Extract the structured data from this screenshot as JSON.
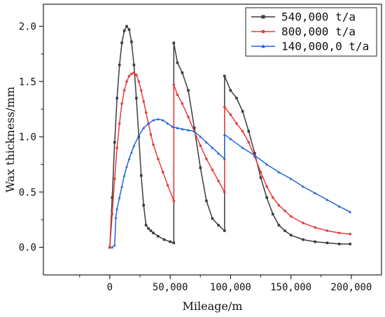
{
  "chart_data": {
    "type": "line",
    "xlabel": "Mileage/m",
    "ylabel": "Wax thickness/mm",
    "xlim": [
      -55000,
      225000
    ],
    "ylim": [
      -0.25,
      2.2
    ],
    "x_ticks": [
      0,
      50000,
      100000,
      150000,
      200000
    ],
    "x_tick_labels": [
      "0",
      "50,000",
      "100,000",
      "150,000",
      "200,000"
    ],
    "y_ticks": [
      0.0,
      0.5,
      1.0,
      1.5,
      2.0
    ],
    "y_tick_labels": [
      "0.0",
      "0.5",
      "1.0",
      "1.5",
      "2.0"
    ],
    "grid": false,
    "legend_position": "top-right",
    "series": [
      {
        "name": "540,000 t/a",
        "color": "#3c3c3c",
        "marker": "square",
        "x": [
          0,
          2000,
          4000,
          6000,
          8000,
          10000,
          12000,
          14000,
          16000,
          18000,
          20000,
          22000,
          24000,
          26000,
          28000,
          30000,
          32000,
          34000,
          36000,
          40000,
          45000,
          50000,
          53000,
          53001,
          56000,
          60000,
          65000,
          70000,
          75000,
          80000,
          85000,
          90000,
          95000,
          95001,
          100000,
          105000,
          110000,
          115000,
          120000,
          125000,
          130000,
          135000,
          140000,
          145000,
          150000,
          160000,
          170000,
          180000,
          190000,
          199000
        ],
        "y": [
          0.0,
          0.45,
          0.95,
          1.35,
          1.65,
          1.85,
          1.96,
          2.0,
          1.97,
          1.86,
          1.65,
          1.35,
          1.0,
          0.65,
          0.38,
          0.2,
          0.17,
          0.15,
          0.13,
          0.1,
          0.07,
          0.05,
          0.04,
          1.85,
          1.67,
          1.58,
          1.42,
          1.08,
          0.72,
          0.42,
          0.26,
          0.2,
          0.15,
          1.55,
          1.42,
          1.35,
          1.23,
          1.05,
          0.85,
          0.63,
          0.45,
          0.3,
          0.2,
          0.15,
          0.11,
          0.07,
          0.05,
          0.04,
          0.03,
          0.03
        ]
      },
      {
        "name": "800,000 t/a",
        "color": "#e83b3b",
        "marker": "circle",
        "x": [
          0,
          2000,
          4000,
          6000,
          8000,
          10000,
          12000,
          14000,
          16000,
          18000,
          20000,
          22000,
          24000,
          26000,
          28000,
          30000,
          32000,
          34000,
          36000,
          40000,
          44000,
          48000,
          53000,
          53001,
          56000,
          60000,
          65000,
          70000,
          75000,
          80000,
          85000,
          90000,
          95000,
          95001,
          100000,
          105000,
          110000,
          115000,
          120000,
          125000,
          130000,
          135000,
          140000,
          145000,
          150000,
          160000,
          170000,
          180000,
          190000,
          199000
        ],
        "y": [
          0.0,
          0.3,
          0.62,
          0.9,
          1.12,
          1.3,
          1.42,
          1.5,
          1.55,
          1.57,
          1.58,
          1.56,
          1.5,
          1.42,
          1.32,
          1.22,
          1.12,
          1.02,
          0.93,
          0.8,
          0.68,
          0.56,
          0.42,
          1.47,
          1.38,
          1.3,
          1.18,
          1.05,
          0.92,
          0.8,
          0.7,
          0.6,
          0.5,
          1.27,
          1.2,
          1.12,
          1.05,
          0.95,
          0.82,
          0.68,
          0.55,
          0.45,
          0.38,
          0.33,
          0.28,
          0.22,
          0.18,
          0.15,
          0.13,
          0.12
        ]
      },
      {
        "name": "140,000,0 t/a",
        "color": "#2466d9",
        "marker": "triangle",
        "x": [
          2000,
          4000,
          5000,
          6000,
          8000,
          10000,
          12000,
          14000,
          16000,
          18000,
          20000,
          24000,
          28000,
          32000,
          36000,
          40000,
          44000,
          48000,
          52000,
          56000,
          60000,
          65000,
          70000,
          75000,
          80000,
          85000,
          90000,
          95000,
          95001,
          100000,
          110000,
          120000,
          130000,
          140000,
          150000,
          160000,
          170000,
          180000,
          190000,
          199000
        ],
        "y": [
          0.0,
          0.02,
          0.27,
          0.35,
          0.45,
          0.55,
          0.65,
          0.73,
          0.8,
          0.86,
          0.92,
          1.01,
          1.08,
          1.12,
          1.15,
          1.16,
          1.15,
          1.12,
          1.09,
          1.08,
          1.07,
          1.06,
          1.05,
          1.0,
          0.95,
          0.9,
          0.85,
          0.8,
          1.02,
          0.98,
          0.9,
          0.83,
          0.75,
          0.68,
          0.62,
          0.55,
          0.49,
          0.43,
          0.37,
          0.32
        ]
      }
    ]
  }
}
